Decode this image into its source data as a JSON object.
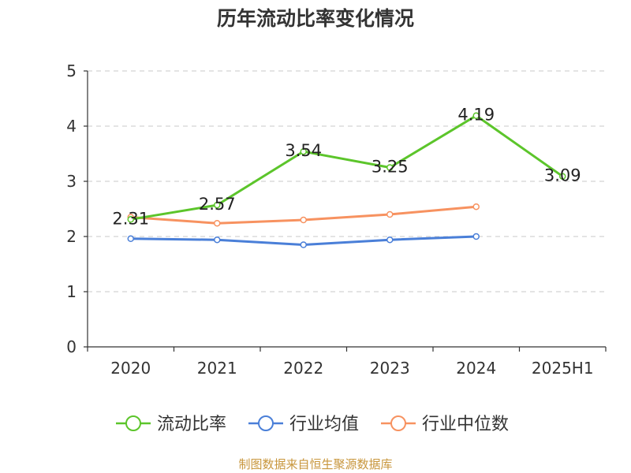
{
  "title": "历年流动比率变化情况",
  "source": "制图数据来自恒生聚源数据库",
  "chart_data": {
    "type": "line",
    "title": "历年流动比率变化情况",
    "categories": [
      "2020",
      "2021",
      "2022",
      "2023",
      "2024",
      "2025H1"
    ],
    "y_ticks": [
      "0",
      "1",
      "2",
      "3",
      "4",
      "5"
    ],
    "ylim": [
      0,
      5
    ],
    "grid": "horizontal dashed",
    "legend_position": "bottom",
    "series": [
      {
        "name": "流动比率",
        "color": "#5cc52b",
        "values": [
          2.31,
          2.57,
          3.54,
          3.25,
          4.19,
          3.09
        ],
        "labels": [
          "2.31",
          "2.57",
          "3.54",
          "3.25",
          "4.19",
          "3.09"
        ],
        "show_labels": true
      },
      {
        "name": "行业均值",
        "color": "#4a7fd8",
        "values": [
          1.96,
          1.94,
          1.85,
          1.94,
          2.0,
          null
        ],
        "show_labels": false
      },
      {
        "name": "行业中位数",
        "color": "#f79260",
        "values": [
          2.35,
          2.24,
          2.3,
          2.4,
          2.54,
          null
        ],
        "show_labels": false
      }
    ]
  }
}
